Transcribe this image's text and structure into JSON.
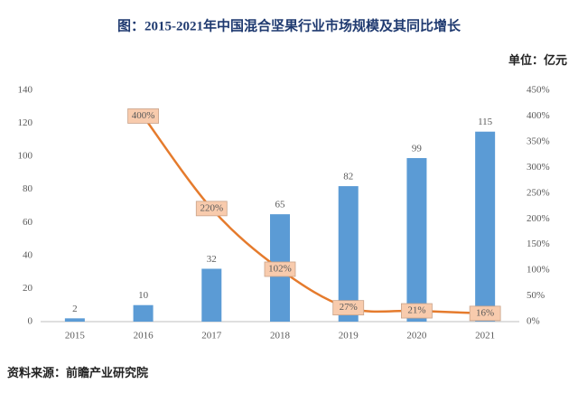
{
  "chart_data": {
    "type": "bar",
    "title": "图：2015-2021年中国混合坚果行业市场规模及其同比增长",
    "unit": "单位：亿元",
    "source": "资料来源：前瞻产业研究院",
    "categories": [
      "2015",
      "2016",
      "2017",
      "2018",
      "2019",
      "2020",
      "2021"
    ],
    "series": [
      {
        "type": "bar",
        "color": "#5b9bd5",
        "values": [
          2,
          10,
          32,
          65,
          82,
          99,
          115
        ]
      },
      {
        "type": "line",
        "axis": "y2",
        "color": "#e57b2d",
        "values": [
          null,
          400,
          220,
          102,
          27,
          21,
          16
        ],
        "value_labels": [
          null,
          "400%",
          "220%",
          "102%",
          "27%",
          "21%",
          "16%"
        ]
      }
    ],
    "ylim": [
      0,
      140
    ],
    "yticks": [
      0,
      20,
      40,
      60,
      80,
      100,
      120,
      140
    ],
    "y2lim": [
      0,
      450
    ],
    "y2ticks": [
      {
        "value": 0,
        "label": "0%"
      },
      {
        "value": 50,
        "label": "50%"
      },
      {
        "value": 100,
        "label": "100%"
      },
      {
        "value": 150,
        "label": "150%"
      },
      {
        "value": 200,
        "label": "200%"
      },
      {
        "value": 250,
        "label": "250%"
      },
      {
        "value": 300,
        "label": "300%"
      },
      {
        "value": 350,
        "label": "350%"
      },
      {
        "value": 400,
        "label": "400%"
      },
      {
        "value": 450,
        "label": "450%"
      }
    ]
  }
}
